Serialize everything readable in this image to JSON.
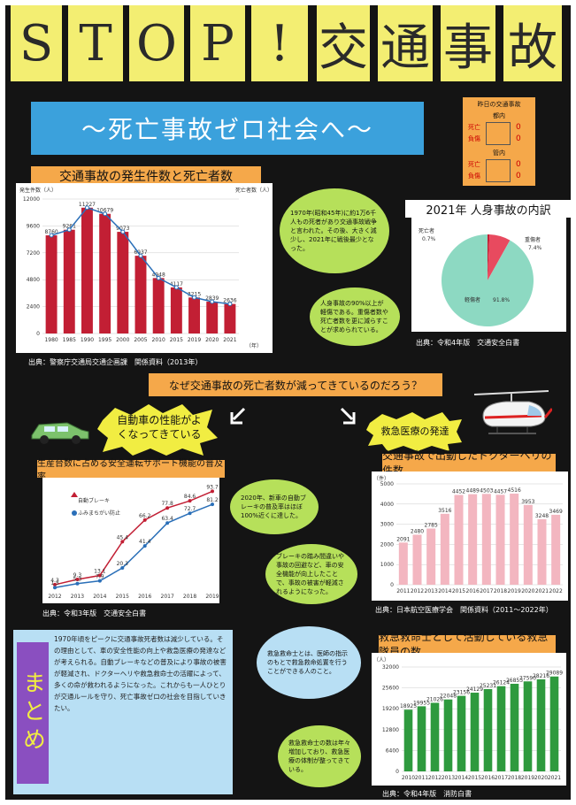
{
  "header": {
    "title_tiles": [
      "S",
      "T",
      "O",
      "P",
      "!",
      "交",
      "通",
      "事",
      "故"
    ],
    "subtitle": "～死亡事故ゼロ社会へ～"
  },
  "local_box": {
    "title": "昨日の交通事故",
    "area1": "都内",
    "area2": "管内",
    "rows": [
      "死亡",
      "負傷"
    ],
    "values1": [
      "0",
      "0"
    ],
    "values2": [
      "0",
      "0"
    ]
  },
  "chart1": {
    "title": "交通事故の発生件数と死亡者数",
    "left_axis": "発生件数（人）",
    "right_axis": "死亡者数（人）",
    "unit_year": "（年）",
    "source": "出典：警察庁交通局交通企画課　関係資料（2013年）",
    "chart_data": {
      "type": "bar",
      "categories": [
        "1980",
        "1985",
        "1990",
        "1995",
        "2000",
        "2005",
        "2010",
        "2015",
        "2019",
        "2020",
        "2021"
      ],
      "series": [
        {
          "values": [
            8760,
            9261,
            11227,
            10679,
            9073,
            6937,
            4948,
            4117,
            3215,
            2839,
            2636
          ]
        },
        {
          "values": [
            8760,
            9261,
            11227,
            10679,
            9073,
            6937,
            4948,
            4117,
            3215,
            2839,
            2636
          ]
        }
      ],
      "ylim": [
        0,
        12000
      ]
    }
  },
  "bubble1": "1970年(昭和45年)に約1万6千人もの死者があり交通事故戦争と言われた。その後、大きく減少し、2021年に戦後最少となった。",
  "chart2": {
    "title": "2021年 人身事故の内訳",
    "labels": [
      "死亡者",
      "重傷者",
      "軽傷者"
    ],
    "pcts": [
      "0.7%",
      "7.4%",
      "91.8%"
    ],
    "chart_data": {
      "type": "pie",
      "categories": [
        "死亡者",
        "重傷者",
        "軽傷者"
      ],
      "values": [
        0.7,
        7.4,
        91.8
      ]
    },
    "source": "出典：令和4年版　交通安全白書"
  },
  "bubble2": "人身事故の90%以上が軽傷である。重傷者数や死亡者数を更に減らすことが求められている。",
  "question": "なぜ交通事故の死亡者数が減ってきているのだろう？",
  "reason1": "自動車の性能がよくなってきている",
  "reason2": "救急医療の発達",
  "chart3": {
    "title": "生産台数に占める安全運転サポート機能の普及率",
    "legend": [
      "自動ブレーキ",
      "ふみまちがい防止"
    ],
    "chart_data": {
      "type": "line",
      "categories": [
        "2012",
        "2013",
        "2014",
        "2015",
        "2016",
        "2017",
        "2018",
        "2019"
      ],
      "series": [
        {
          "name": "自動ブレーキ",
          "values": [
            4.3,
            9.3,
            13.1,
            45.4,
            66.2,
            77.8,
            84.6,
            93.7
          ]
        },
        {
          "name": "ふみまちがい防止",
          "values": [
            1.5,
            5.3,
            7.9,
            20.3,
            41.4,
            63.4,
            72.7,
            81.2
          ]
        }
      ],
      "ylim": [
        0,
        100
      ]
    },
    "source": "出典：令和3年版　交通安全白書"
  },
  "bubble3": "2020年、新車の自動ブレーキの普及率はほぼ100%近くに達した。",
  "bubble4": "ブレーキの踏み間違いや事故の回避など、車の安全機能が向上したことで、事故の被害が軽減されるようになった。",
  "chart4": {
    "title": "交通事故で出動したドクターヘリの件数",
    "unit": "（件）",
    "chart_data": {
      "type": "bar",
      "categories": [
        "2011",
        "2012",
        "2013",
        "2014",
        "2015",
        "2016",
        "2017",
        "2018",
        "2019",
        "2020",
        "2021",
        "2022"
      ],
      "values": [
        2091,
        2480,
        2785,
        3516,
        4452,
        4489,
        4503,
        4457,
        4516,
        3953,
        3248,
        3469
      ],
      "ylim": [
        0,
        5000
      ]
    },
    "source": "出典：日本航空医療学会　関係資料（2011～2022年）"
  },
  "summary": {
    "label": "まとめ",
    "text": "1970年頃をピークに交通事故死者数は減少している。その理由として、車の安全性能の向上や救急医療の発達などが考えられる。自動ブレーキなどの普及により事故の被害が軽減され、ドクターヘリや救急救命士の活躍によって、多くの命が救われるようになった。これからも一人ひとりが交通ルールを守り、死亡事故ゼロの社会を目指していきたい。"
  },
  "bubble5": "救急救命士とは、医師の指示のもとで救急救命処置を行うことができる人のこと。",
  "chart5": {
    "title": "救急救命士として活動している救急隊員の数",
    "unit": "（人）",
    "chart_data": {
      "type": "bar",
      "categories": [
        "2010",
        "2011",
        "2012",
        "2013",
        "2014",
        "2015",
        "2016",
        "2017",
        "2018",
        "2019",
        "2020",
        "2021"
      ],
      "values": [
        18925,
        19955,
        21026,
        22048,
        23156,
        24129,
        25231,
        26124,
        26853,
        27590,
        28216,
        29089
      ],
      "ylim": [
        0,
        32000
      ]
    },
    "source": "出典：令和4年版　消防白書"
  },
  "bubble6": "救急救命士の数は年々増加しており、救急医療の体制が整ってきている。",
  "colors": {
    "bar_red": "#c21f34",
    "line_blue": "#2a6fb8",
    "bar_pink": "#f3b6c0",
    "bar_green": "#2e9a3e",
    "pie": "#8dd9c2",
    "pie_red": "#e84a5f"
  }
}
